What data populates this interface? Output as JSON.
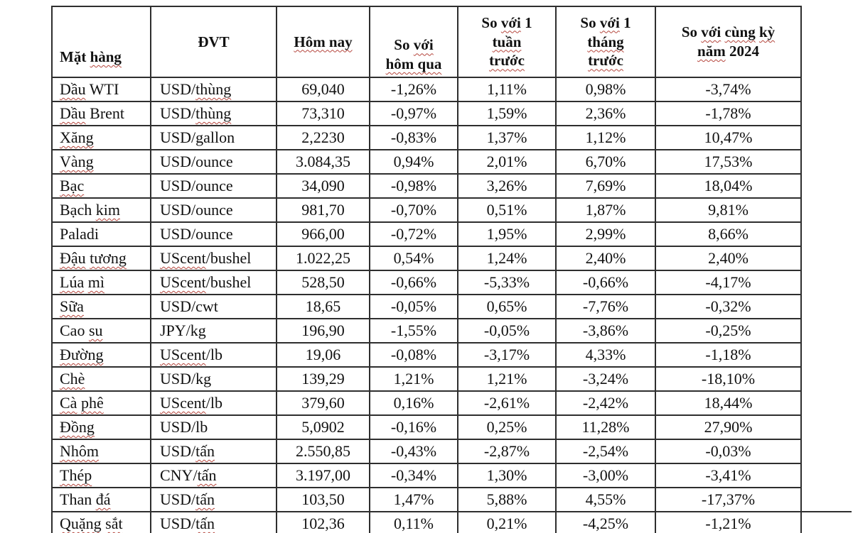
{
  "colors": {
    "background": "#ffffff",
    "text": "#111111",
    "table_border": "#2e2e2e",
    "spellcheck_squiggle": "#b5453c"
  },
  "table": {
    "columns": [
      {
        "id": "mat-hang",
        "label": "Mặt hàng",
        "lines": [
          [
            [
              "Mặt ",
              0
            ],
            [
              "hàng",
              1
            ]
          ]
        ]
      },
      {
        "id": "dvt",
        "label": "ĐVT",
        "lines": [
          [
            [
              "ĐVT",
              0
            ]
          ]
        ]
      },
      {
        "id": "hom-nay",
        "label": "Hôm nay",
        "lines": [
          [
            [
              "Hôm nay",
              1
            ]
          ]
        ]
      },
      {
        "id": "so-voi-hom-qua",
        "label": "So với hôm qua",
        "lines": [
          [
            [
              "So ",
              0
            ],
            [
              "với",
              1
            ]
          ],
          [
            [
              "hôm qua",
              1
            ]
          ]
        ]
      },
      {
        "id": "so-voi-1-tuan-truoc",
        "label": "So với 1 tuần trước",
        "lines": [
          [
            [
              "So ",
              0
            ],
            [
              "với",
              1
            ],
            [
              " 1",
              0
            ]
          ],
          [
            [
              "tuần",
              1
            ]
          ],
          [
            [
              "trước",
              1
            ]
          ]
        ]
      },
      {
        "id": "so-voi-1-thang-truoc",
        "label": "So với 1 tháng trước",
        "lines": [
          [
            [
              "So ",
              0
            ],
            [
              "với",
              1
            ],
            [
              " 1",
              0
            ]
          ],
          [
            [
              "tháng",
              1
            ]
          ],
          [
            [
              "trước",
              1
            ]
          ]
        ]
      },
      {
        "id": "so-voi-cung-ky-nam-2024",
        "label": "So với cùng kỳ năm 2024",
        "lines": [
          [
            [
              "So ",
              0
            ],
            [
              "với",
              1
            ],
            [
              " ",
              0
            ],
            [
              "cùng",
              1
            ],
            [
              " ",
              0
            ],
            [
              "kỳ",
              1
            ]
          ],
          [
            [
              "năm",
              1
            ],
            [
              " 2024",
              0
            ]
          ]
        ]
      }
    ],
    "rows": [
      {
        "name": [
          [
            "Dầu",
            1
          ],
          [
            " WTI",
            0
          ]
        ],
        "unit": [
          [
            "USD/",
            0
          ],
          [
            "thùng",
            1
          ]
        ],
        "values": [
          "69,040",
          "-1,26%",
          "1,11%",
          "0,98%",
          "-3,74%"
        ]
      },
      {
        "name": [
          [
            "Dầu",
            1
          ],
          [
            " Brent",
            0
          ]
        ],
        "unit": [
          [
            "USD/",
            0
          ],
          [
            "thùng",
            1
          ]
        ],
        "values": [
          "73,310",
          "-0,97%",
          "1,59%",
          "2,36%",
          "-1,78%"
        ]
      },
      {
        "name": [
          [
            "Xăng",
            1
          ]
        ],
        "unit": [
          [
            "USD/gallon",
            0
          ]
        ],
        "values": [
          "2,2230",
          "-0,83%",
          "1,37%",
          "1,12%",
          "10,47%"
        ]
      },
      {
        "name": [
          [
            "Vàng",
            1
          ]
        ],
        "unit": [
          [
            "USD/ounce",
            0
          ]
        ],
        "values": [
          "3.084,35",
          "0,94%",
          "2,01%",
          "6,70%",
          "17,53%"
        ]
      },
      {
        "name": [
          [
            "Bạc",
            1
          ]
        ],
        "unit": [
          [
            "USD/ounce",
            0
          ]
        ],
        "values": [
          "34,090",
          "-0,98%",
          "3,26%",
          "7,69%",
          "18,04%"
        ]
      },
      {
        "name": [
          [
            "Bạch ",
            0
          ],
          [
            "kim",
            1
          ]
        ],
        "unit": [
          [
            "USD/ounce",
            0
          ]
        ],
        "values": [
          "981,70",
          "-0,70%",
          "0,51%",
          "1,87%",
          "9,81%"
        ]
      },
      {
        "name": [
          [
            "Paladi",
            0
          ]
        ],
        "unit": [
          [
            "USD/ounce",
            0
          ]
        ],
        "values": [
          "966,00",
          "-0,72%",
          "1,95%",
          "2,99%",
          "8,66%"
        ]
      },
      {
        "name": [
          [
            "Đậu",
            1
          ],
          [
            " ",
            0
          ],
          [
            "tương",
            1
          ]
        ],
        "unit": [
          [
            "UScent",
            1
          ],
          [
            "/bushel",
            0
          ]
        ],
        "values": [
          "1.022,25",
          "0,54%",
          "1,24%",
          "2,40%",
          "2,40%"
        ]
      },
      {
        "name": [
          [
            "Lúa",
            1
          ],
          [
            " ",
            0
          ],
          [
            "mì",
            1
          ]
        ],
        "unit": [
          [
            "UScent",
            1
          ],
          [
            "/bushel",
            0
          ]
        ],
        "values": [
          "528,50",
          "-0,66%",
          "-5,33%",
          "-0,66%",
          "-4,17%"
        ]
      },
      {
        "name": [
          [
            "Sữa",
            1
          ]
        ],
        "unit": [
          [
            "USD/cwt",
            0
          ]
        ],
        "values": [
          "18,65",
          "-0,05%",
          "0,65%",
          "-7,76%",
          "-0,32%"
        ]
      },
      {
        "name": [
          [
            "Cao ",
            0
          ],
          [
            "su",
            1
          ]
        ],
        "unit": [
          [
            "JPY/kg",
            0
          ]
        ],
        "values": [
          "196,90",
          "-1,55%",
          "-0,05%",
          "-3,86%",
          "-0,25%"
        ]
      },
      {
        "name": [
          [
            "Đường",
            1
          ]
        ],
        "unit": [
          [
            "UScent",
            1
          ],
          [
            "/lb",
            0
          ]
        ],
        "values": [
          "19,06",
          "-0,08%",
          "-3,17%",
          "4,33%",
          "-1,18%"
        ]
      },
      {
        "name": [
          [
            "Chè",
            1
          ]
        ],
        "unit": [
          [
            "USD/kg",
            0
          ]
        ],
        "values": [
          "139,29",
          "1,21%",
          "1,21%",
          "-3,24%",
          "-18,10%"
        ]
      },
      {
        "name": [
          [
            "Cà",
            1
          ],
          [
            " ",
            0
          ],
          [
            "phê",
            1
          ]
        ],
        "unit": [
          [
            "UScent",
            1
          ],
          [
            "/lb",
            0
          ]
        ],
        "values": [
          "379,60",
          "0,16%",
          "-2,61%",
          "-2,42%",
          "18,44%"
        ]
      },
      {
        "name": [
          [
            "Đồng",
            1
          ]
        ],
        "unit": [
          [
            "USD/lb",
            0
          ]
        ],
        "values": [
          "5,0902",
          "-0,16%",
          "0,25%",
          "11,28%",
          "27,90%"
        ]
      },
      {
        "name": [
          [
            "Nhôm",
            1
          ]
        ],
        "unit": [
          [
            "USD/",
            0
          ],
          [
            "tấn",
            1
          ]
        ],
        "values": [
          "2.550,85",
          "-0,43%",
          "-2,87%",
          "-2,54%",
          "-0,03%"
        ]
      },
      {
        "name": [
          [
            "Thép",
            1
          ]
        ],
        "unit": [
          [
            "CNY/",
            0
          ],
          [
            "tấn",
            1
          ]
        ],
        "values": [
          "3.197,00",
          "-0,34%",
          "1,30%",
          "-3,00%",
          "-3,41%"
        ]
      },
      {
        "name": [
          [
            "Than ",
            0
          ],
          [
            "đá",
            1
          ]
        ],
        "unit": [
          [
            "USD/",
            0
          ],
          [
            "tấn",
            1
          ]
        ],
        "values": [
          "103,50",
          "1,47%",
          "5,88%",
          "4,55%",
          "-17,37%"
        ]
      },
      {
        "name": [
          [
            "Quặng",
            1
          ],
          [
            " ",
            0
          ],
          [
            "sắt",
            1
          ]
        ],
        "unit": [
          [
            "USD/",
            0
          ],
          [
            "tấn",
            1
          ]
        ],
        "values": [
          "102,36",
          "0,11%",
          "0,21%",
          "-4,25%",
          "-1,21%"
        ]
      }
    ]
  }
}
